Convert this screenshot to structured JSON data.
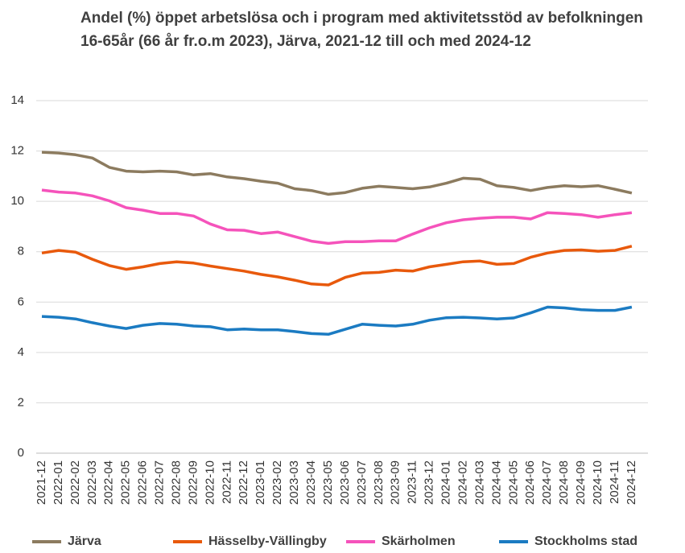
{
  "chart_data": {
    "type": "line",
    "title": "Andel (%) öppet arbetslösa och i program med aktivitetsstöd av befolkningen 16-65år (66 år fr.o.m 2023), Järva, 2021-12 till och med 2024-12",
    "categories": [
      "2021-12",
      "2022-01",
      "2022-02",
      "2022-03",
      "2022-04",
      "2022-05",
      "2022-06",
      "2022-07",
      "2022-08",
      "2022-09",
      "2022-10",
      "2022-11",
      "2022-12",
      "2023-01",
      "2023-02",
      "2023-03",
      "2023-04",
      "2023-05",
      "2023-06",
      "2023-07",
      "2023-08",
      "2023-09",
      "2023-11",
      "2023-12",
      "2024-01",
      "2024-02",
      "2024-03",
      "2024-04",
      "2024-05",
      "2024-06",
      "2024-07",
      "2024-08",
      "2024-09",
      "2024-10",
      "2024-11",
      "2024-12"
    ],
    "series": [
      {
        "name": "Järva",
        "color": "#8c7b5f",
        "values": [
          11.95,
          11.92,
          11.85,
          11.72,
          11.35,
          11.2,
          11.17,
          11.2,
          11.17,
          11.05,
          11.1,
          10.97,
          10.9,
          10.8,
          10.72,
          10.5,
          10.43,
          10.28,
          10.35,
          10.52,
          10.6,
          10.55,
          10.5,
          10.57,
          10.72,
          10.92,
          10.88,
          10.62,
          10.55,
          10.43,
          10.55,
          10.62,
          10.58,
          10.62,
          10.48,
          10.33
        ]
      },
      {
        "name": "Hässelby-Vällingby",
        "color": "#e8590c",
        "values": [
          7.95,
          8.05,
          7.98,
          7.7,
          7.45,
          7.3,
          7.4,
          7.53,
          7.6,
          7.55,
          7.43,
          7.33,
          7.23,
          7.1,
          7.0,
          6.87,
          6.72,
          6.68,
          6.98,
          7.15,
          7.18,
          7.27,
          7.23,
          7.4,
          7.5,
          7.6,
          7.63,
          7.5,
          7.53,
          7.78,
          7.95,
          8.05,
          8.07,
          8.02,
          8.05,
          8.22
        ]
      },
      {
        "name": "Skärholmen",
        "color": "#f553bb",
        "values": [
          10.45,
          10.37,
          10.33,
          10.22,
          10.02,
          9.75,
          9.65,
          9.52,
          9.52,
          9.42,
          9.1,
          8.87,
          8.85,
          8.72,
          8.78,
          8.6,
          8.42,
          8.33,
          8.4,
          8.4,
          8.43,
          8.43,
          8.7,
          8.95,
          9.15,
          9.27,
          9.33,
          9.37,
          9.37,
          9.3,
          9.55,
          9.52,
          9.47,
          9.37,
          9.47,
          9.55
        ]
      },
      {
        "name": "Stockholms stad",
        "color": "#1b7bc2",
        "values": [
          5.43,
          5.4,
          5.33,
          5.18,
          5.05,
          4.95,
          5.08,
          5.15,
          5.12,
          5.05,
          5.02,
          4.9,
          4.93,
          4.9,
          4.9,
          4.83,
          4.75,
          4.72,
          4.92,
          5.12,
          5.08,
          5.05,
          5.12,
          5.28,
          5.38,
          5.4,
          5.37,
          5.33,
          5.37,
          5.57,
          5.8,
          5.77,
          5.7,
          5.67,
          5.67,
          5.8
        ]
      }
    ],
    "ylim": [
      0,
      14
    ],
    "yticks": [
      0,
      2,
      4,
      6,
      8,
      10,
      12,
      14
    ],
    "grid": true,
    "legend": "bottom"
  }
}
